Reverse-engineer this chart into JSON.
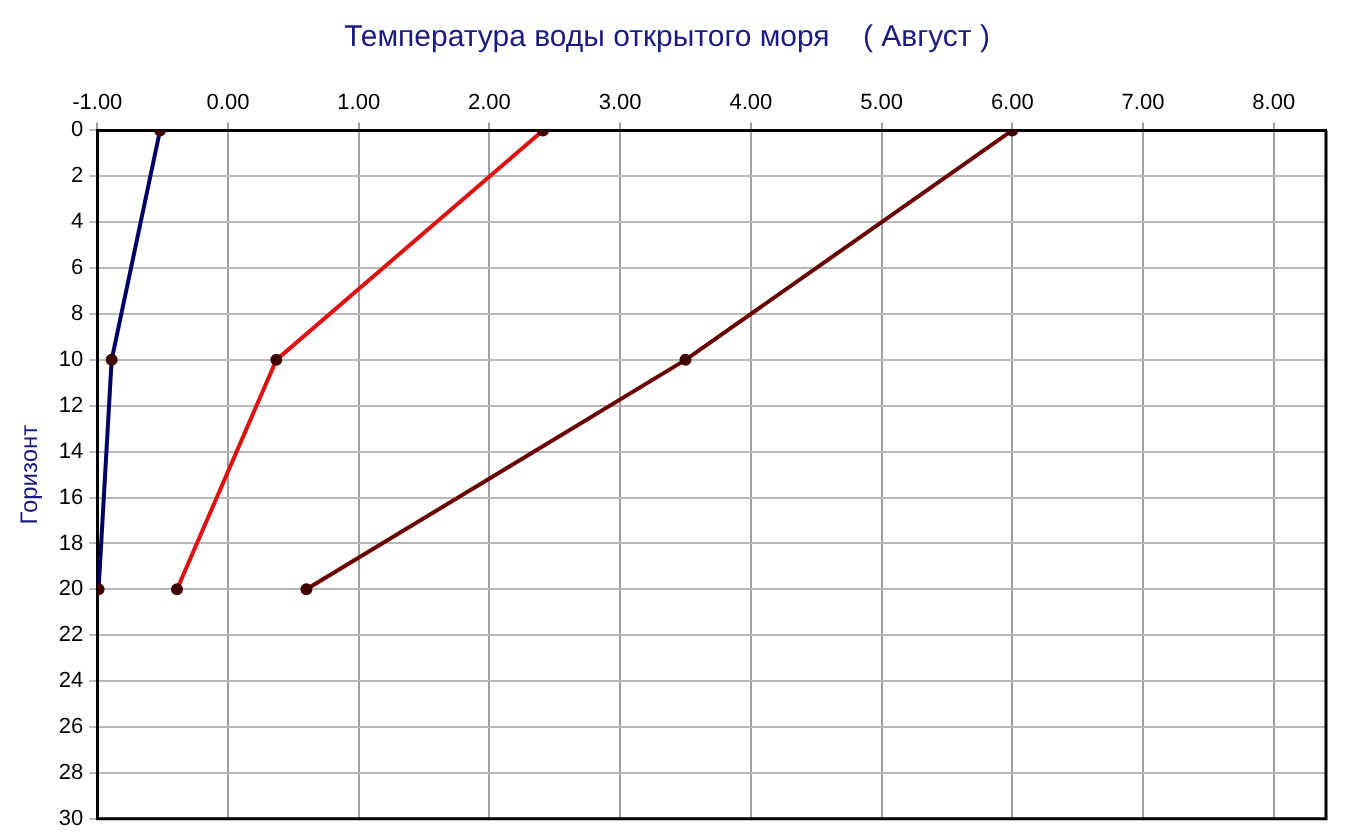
{
  "chart_data": {
    "type": "line",
    "title": "Температура воды открытого моря    ( Август )",
    "ylabel": "Горизонт",
    "xlim": [
      -1,
      8.4
    ],
    "xticks": [
      {
        "value": -1,
        "label": "-1.00"
      },
      {
        "value": 0,
        "label": "0.00"
      },
      {
        "value": 1,
        "label": "1.00"
      },
      {
        "value": 2,
        "label": "2.00"
      },
      {
        "value": 3,
        "label": "3.00"
      },
      {
        "value": 4,
        "label": "4.00"
      },
      {
        "value": 5,
        "label": "5.00"
      },
      {
        "value": 6,
        "label": "6.00"
      },
      {
        "value": 7,
        "label": "7.00"
      },
      {
        "value": 8,
        "label": "8.00"
      }
    ],
    "ylim": [
      30,
      0
    ],
    "yticks": [
      0,
      2,
      4,
      6,
      8,
      10,
      12,
      14,
      16,
      18,
      20,
      22,
      24,
      26,
      28,
      30
    ],
    "grid": true,
    "marker": "circle",
    "line_style": "solid",
    "series": [
      {
        "color": "#000066",
        "x": [
          -0.52,
          -0.89,
          -0.99
        ],
        "values": [
          0,
          10,
          20
        ]
      },
      {
        "color": "#e01010",
        "x": [
          2.41,
          0.37,
          -0.39
        ],
        "values": [
          0,
          10,
          20
        ]
      },
      {
        "color": "#6b0000",
        "x": [
          6.0,
          3.5,
          0.6
        ],
        "values": [
          0,
          10,
          20
        ]
      }
    ]
  }
}
